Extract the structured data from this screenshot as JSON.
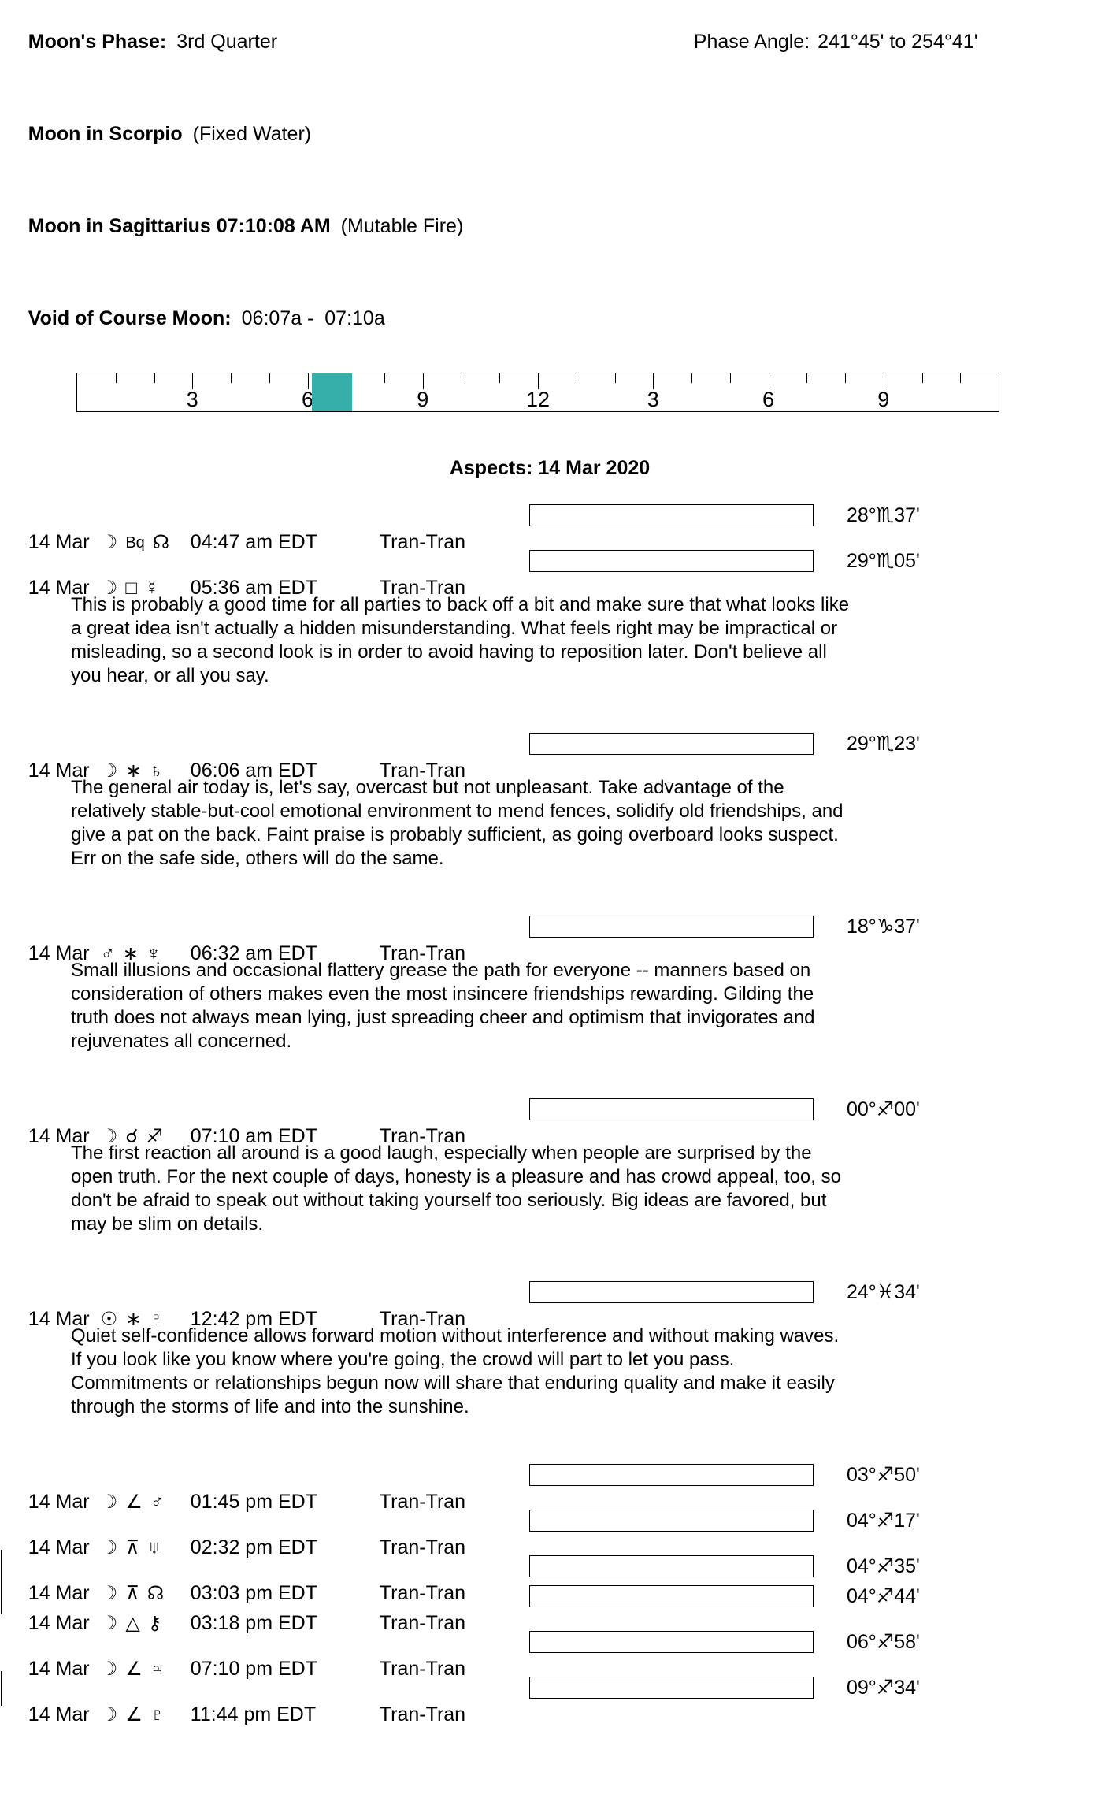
{
  "header": {
    "moon_phase_label": "Moon's Phase:",
    "moon_phase_value": "3rd Quarter",
    "phase_angle_label": "Phase Angle:",
    "phase_angle_value": "241°45' to 254°41'",
    "moon_sign_label": "Moon in Scorpio",
    "moon_sign_note": "(Fixed Water)",
    "moon_ingress_label": "Moon in Sagittarius 07:10:08 AM",
    "moon_ingress_note": "(Mutable Fire)",
    "voc_label": "Void of Course Moon:",
    "voc_value": "06:07a -  07:10a"
  },
  "ruler": {
    "hours_total": 24,
    "labels": [
      "3",
      "6",
      "9",
      "12",
      "3",
      "6",
      "9"
    ],
    "label_hours": [
      3,
      6,
      9,
      12,
      15,
      18,
      21
    ],
    "voc_start_hour": 6.117,
    "voc_end_hour": 7.167,
    "voc_color": "#36aeaa"
  },
  "aspects": {
    "title": "Aspects: 14 Mar 2020",
    "rows": [
      {
        "date": "14 Mar",
        "body1": {
          "name": "moon",
          "glyph": "☽"
        },
        "aspect": {
          "name": "biquintile",
          "glyph": "Bq"
        },
        "body2": {
          "name": "north-node",
          "glyph": "☊"
        },
        "time": "04:47 am EDT",
        "type": "Tran-Tran",
        "degree": "28°♏37'",
        "fill_pct": 9.5,
        "fill_color": "#b8dfd9"
      },
      {
        "date": "14 Mar",
        "body1": {
          "name": "moon",
          "glyph": "☽"
        },
        "aspect": {
          "name": "square",
          "glyph": "□"
        },
        "body2": {
          "name": "mercury",
          "glyph": "☿"
        },
        "time": "05:36 am EDT",
        "type": "Tran-Tran",
        "degree": "29°♏05'",
        "fill_pct": 9.5,
        "fill_color": "#b8dfd9",
        "text": [
          "This is probably a good time for all parties to back off a bit and make sure that what looks like",
          "a great idea isn't actually a hidden misunderstanding. What feels right may be impractical or",
          "misleading, so a second look is in order to avoid having to reposition later. Don't believe all",
          "you hear, or all you say."
        ]
      },
      {
        "date": "14 Mar",
        "body1": {
          "name": "moon",
          "glyph": "☽"
        },
        "aspect": {
          "name": "sextile",
          "glyph": "∗"
        },
        "body2": {
          "name": "saturn",
          "glyph": "♄"
        },
        "time": "06:06 am EDT",
        "type": "Tran-Tran",
        "degree": "29°♏23'",
        "fill_pct": 9.5,
        "fill_color": "#b8dfd9",
        "text": [
          "The general air today is, let's say, overcast but not unpleasant. Take advantage of the",
          "relatively stable-but-cool emotional environment to mend fences, solidify old friendships, and",
          "give a pat on the back. Faint praise is probably sufficient, as going overboard looks suspect.",
          "Err on the safe side, others will do the same."
        ]
      },
      {
        "date": "14 Mar",
        "body1": {
          "name": "mars",
          "glyph": "♂"
        },
        "aspect": {
          "name": "sextile",
          "glyph": "∗"
        },
        "body2": {
          "name": "neptune",
          "glyph": "♆"
        },
        "time": "06:32 am EDT",
        "type": "Tran-Tran",
        "degree": "18°♑37'",
        "fill_pct": 50,
        "fill_color": "#ef5288",
        "text": [
          "Small illusions and occasional flattery grease the path for everyone -- manners based on",
          "consideration of others makes even the most insincere friendships rewarding. Gilding the",
          "truth does not always mean lying, just spreading cheer and optimism that invigorates and",
          "rejuvenates all concerned."
        ]
      },
      {
        "date": "14 Mar",
        "body1": {
          "name": "moon",
          "glyph": "☽"
        },
        "aspect": {
          "name": "conjunction",
          "glyph": "☌"
        },
        "body2": {
          "name": "sagittarius",
          "glyph": "♐"
        },
        "time": "07:10 am EDT",
        "type": "Tran-Tran",
        "degree": "00°♐00'",
        "fill_pct": 9.5,
        "fill_color": "#b8dfd9",
        "text": [
          "The first reaction all around is a good laugh, especially when people are surprised by the",
          "open truth. For the next couple of days, honesty is a pleasure and has crowd appeal, too, so",
          "don't be afraid to speak out without taking yourself too seriously. Big ideas are favored, but",
          "may be slim on details."
        ]
      },
      {
        "date": "14 Mar",
        "body1": {
          "name": "sun",
          "glyph": "☉"
        },
        "aspect": {
          "name": "sextile",
          "glyph": "∗"
        },
        "body2": {
          "name": "pluto",
          "glyph": "♇"
        },
        "time": "12:42 pm EDT",
        "type": "Tran-Tran",
        "degree": "24°♓34'",
        "fill_pct": 20,
        "fill_color": "#fafa7d",
        "text": [
          "Quiet self-confidence allows forward motion without interference and without making waves.",
          "If you look like you know where you're going, the crowd will part to let you pass.",
          "Commitments or relationships begun now will share that enduring quality and make it easily",
          "through the storms of life and into the sunshine."
        ]
      },
      {
        "date": "14 Mar",
        "body1": {
          "name": "moon",
          "glyph": "☽"
        },
        "aspect": {
          "name": "semisquare",
          "glyph": "∠"
        },
        "body2": {
          "name": "mars",
          "glyph": "♂"
        },
        "time": "01:45 pm EDT",
        "type": "Tran-Tran",
        "degree": "03°♐50'",
        "fill_pct": 9.5,
        "fill_color": "#b8dfd9"
      },
      {
        "date": "14 Mar",
        "body1": {
          "name": "moon",
          "glyph": "☽"
        },
        "aspect": {
          "name": "quincunx",
          "glyph": "⊼"
        },
        "body2": {
          "name": "uranus",
          "glyph": "♅"
        },
        "time": "02:32 pm EDT",
        "type": "Tran-Tran",
        "degree": "04°♐17'",
        "fill_pct": 9.5,
        "fill_color": "#b8dfd9"
      },
      {
        "date": "14 Mar",
        "body1": {
          "name": "moon",
          "glyph": "☽"
        },
        "aspect": {
          "name": "quincunx",
          "glyph": "⊼"
        },
        "body2": {
          "name": "north-node",
          "glyph": "☊"
        },
        "time": "03:03 pm EDT",
        "type": "Tran-Tran",
        "degree": "04°♐35'",
        "fill_pct": 9.5,
        "fill_color": "#b8dfd9",
        "edge_mark": true,
        "tight": true
      },
      {
        "date": "14 Mar",
        "body1": {
          "name": "moon",
          "glyph": "☽"
        },
        "aspect": {
          "name": "trine",
          "glyph": "△"
        },
        "body2": {
          "name": "chiron",
          "glyph": "⚷"
        },
        "time": "03:18 pm EDT",
        "type": "Tran-Tran",
        "degree": "04°♐44'",
        "fill_pct": 9.5,
        "fill_color": "#b8dfd9",
        "edge_mark": true
      },
      {
        "date": "14 Mar",
        "body1": {
          "name": "moon",
          "glyph": "☽"
        },
        "aspect": {
          "name": "semisquare",
          "glyph": "∠"
        },
        "body2": {
          "name": "jupiter",
          "glyph": "♃"
        },
        "time": "07:10 pm EDT",
        "type": "Tran-Tran",
        "degree": "06°♐58'",
        "fill_pct": 9.5,
        "fill_color": "#b8dfd9"
      },
      {
        "date": "14 Mar",
        "body1": {
          "name": "moon",
          "glyph": "☽"
        },
        "aspect": {
          "name": "semisquare",
          "glyph": "∠"
        },
        "body2": {
          "name": "pluto",
          "glyph": "♇"
        },
        "time": "11:44 pm EDT",
        "type": "Tran-Tran",
        "degree": "09°♐34'",
        "fill_pct": 9.5,
        "fill_color": "#b8dfd9",
        "edge_mark": true
      }
    ]
  }
}
